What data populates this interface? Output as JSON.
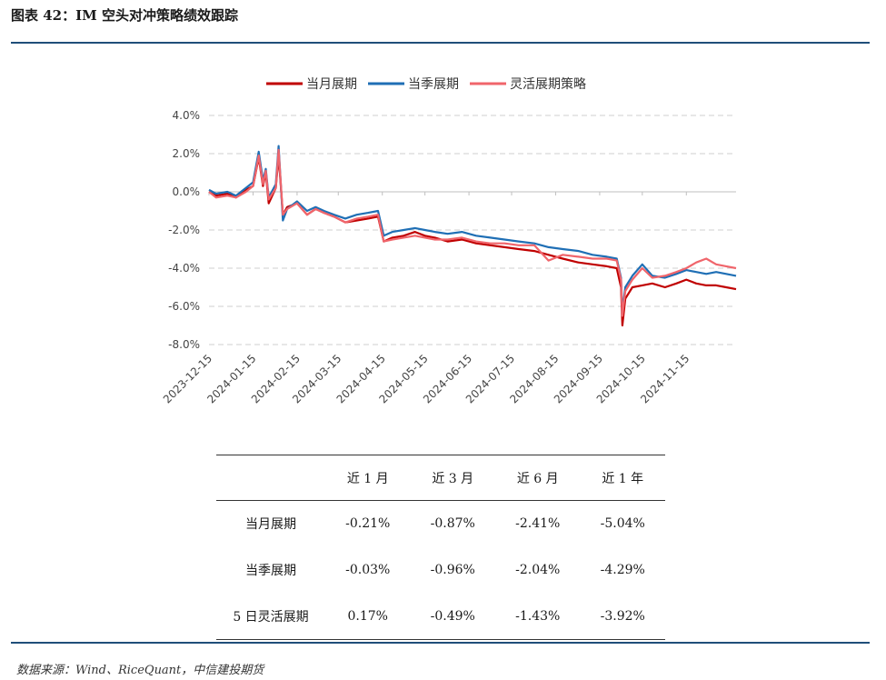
{
  "figure_title": "图表 42：IM 空头对冲策略绩效跟踪",
  "source_note": "数据来源：Wind、RiceQuant，中信建投期货",
  "colors": {
    "accent": "#1f4e79",
    "series_1": "#c00000",
    "series_2": "#1f6fb5",
    "series_3": "#f0656b"
  },
  "chart_data": {
    "type": "line",
    "title": "",
    "xlabel": "",
    "ylabel": "",
    "ylim": [
      -8,
      4
    ],
    "xlim": [
      "2023-12-15",
      "2024-12-20"
    ],
    "yticks": [
      "4.0%",
      "2.0%",
      "0.0%",
      "-2.0%",
      "-4.0%",
      "-6.0%",
      "-8.0%"
    ],
    "ytick_values": [
      4,
      2,
      0,
      -2,
      -4,
      -6,
      -8
    ],
    "xticks": [
      "2023-12-15",
      "2024-01-15",
      "2024-02-15",
      "2024-03-15",
      "2024-04-15",
      "2024-05-15",
      "2024-06-15",
      "2024-07-15",
      "2024-08-15",
      "2024-09-15",
      "2024-10-15",
      "2024-11-15"
    ],
    "grid": true,
    "legend_position": "top",
    "series": [
      {
        "name": "当月展期",
        "color": "#c00000",
        "points": [
          [
            "2023-12-15",
            0.0
          ],
          [
            "2023-12-20",
            -0.2
          ],
          [
            "2023-12-28",
            -0.1
          ],
          [
            "2024-01-03",
            -0.3
          ],
          [
            "2024-01-10",
            0.1
          ],
          [
            "2024-01-15",
            0.3
          ],
          [
            "2024-01-19",
            1.8
          ],
          [
            "2024-01-22",
            0.3
          ],
          [
            "2024-01-24",
            1.0
          ],
          [
            "2024-01-26",
            -0.6
          ],
          [
            "2024-01-31",
            0.2
          ],
          [
            "2024-02-02",
            1.9
          ],
          [
            "2024-02-05",
            -1.2
          ],
          [
            "2024-02-08",
            -0.8
          ],
          [
            "2024-02-15",
            -0.6
          ],
          [
            "2024-02-22",
            -1.2
          ],
          [
            "2024-02-28",
            -0.9
          ],
          [
            "2024-03-05",
            -1.1
          ],
          [
            "2024-03-12",
            -1.3
          ],
          [
            "2024-03-20",
            -1.6
          ],
          [
            "2024-03-28",
            -1.5
          ],
          [
            "2024-04-05",
            -1.4
          ],
          [
            "2024-04-12",
            -1.3
          ],
          [
            "2024-04-16",
            -2.6
          ],
          [
            "2024-04-22",
            -2.4
          ],
          [
            "2024-04-30",
            -2.3
          ],
          [
            "2024-05-08",
            -2.1
          ],
          [
            "2024-05-15",
            -2.3
          ],
          [
            "2024-05-22",
            -2.4
          ],
          [
            "2024-05-31",
            -2.6
          ],
          [
            "2024-06-10",
            -2.5
          ],
          [
            "2024-06-20",
            -2.7
          ],
          [
            "2024-06-30",
            -2.8
          ],
          [
            "2024-07-10",
            -2.9
          ],
          [
            "2024-07-20",
            -3.0
          ],
          [
            "2024-07-31",
            -3.1
          ],
          [
            "2024-08-10",
            -3.3
          ],
          [
            "2024-08-20",
            -3.5
          ],
          [
            "2024-08-31",
            -3.7
          ],
          [
            "2024-09-10",
            -3.8
          ],
          [
            "2024-09-20",
            -3.9
          ],
          [
            "2024-09-27",
            -4.0
          ],
          [
            "2024-09-30",
            -5.0
          ],
          [
            "2024-10-01",
            -7.0
          ],
          [
            "2024-10-03",
            -5.6
          ],
          [
            "2024-10-08",
            -5.0
          ],
          [
            "2024-10-15",
            -4.9
          ],
          [
            "2024-10-22",
            -4.8
          ],
          [
            "2024-10-31",
            -5.0
          ],
          [
            "2024-11-08",
            -4.8
          ],
          [
            "2024-11-15",
            -4.6
          ],
          [
            "2024-11-22",
            -4.8
          ],
          [
            "2024-11-29",
            -4.9
          ],
          [
            "2024-12-06",
            -4.9
          ],
          [
            "2024-12-13",
            -5.0
          ],
          [
            "2024-12-20",
            -5.1
          ]
        ]
      },
      {
        "name": "当季展期",
        "color": "#1f6fb5",
        "points": [
          [
            "2023-12-15",
            0.1
          ],
          [
            "2023-12-20",
            -0.1
          ],
          [
            "2023-12-28",
            0.0
          ],
          [
            "2024-01-03",
            -0.2
          ],
          [
            "2024-01-10",
            0.2
          ],
          [
            "2024-01-15",
            0.5
          ],
          [
            "2024-01-19",
            2.1
          ],
          [
            "2024-01-22",
            0.6
          ],
          [
            "2024-01-24",
            1.2
          ],
          [
            "2024-01-26",
            -0.3
          ],
          [
            "2024-01-31",
            0.4
          ],
          [
            "2024-02-02",
            2.4
          ],
          [
            "2024-02-05",
            -1.5
          ],
          [
            "2024-02-08",
            -0.9
          ],
          [
            "2024-02-15",
            -0.5
          ],
          [
            "2024-02-22",
            -1.0
          ],
          [
            "2024-02-28",
            -0.8
          ],
          [
            "2024-03-05",
            -1.0
          ],
          [
            "2024-03-12",
            -1.2
          ],
          [
            "2024-03-20",
            -1.4
          ],
          [
            "2024-03-28",
            -1.2
          ],
          [
            "2024-04-05",
            -1.1
          ],
          [
            "2024-04-12",
            -1.0
          ],
          [
            "2024-04-16",
            -2.3
          ],
          [
            "2024-04-22",
            -2.1
          ],
          [
            "2024-04-30",
            -2.0
          ],
          [
            "2024-05-08",
            -1.9
          ],
          [
            "2024-05-15",
            -2.0
          ],
          [
            "2024-05-22",
            -2.1
          ],
          [
            "2024-05-31",
            -2.2
          ],
          [
            "2024-06-10",
            -2.1
          ],
          [
            "2024-06-20",
            -2.3
          ],
          [
            "2024-06-30",
            -2.4
          ],
          [
            "2024-07-10",
            -2.5
          ],
          [
            "2024-07-20",
            -2.6
          ],
          [
            "2024-07-31",
            -2.7
          ],
          [
            "2024-08-10",
            -2.9
          ],
          [
            "2024-08-20",
            -3.0
          ],
          [
            "2024-08-31",
            -3.1
          ],
          [
            "2024-09-10",
            -3.3
          ],
          [
            "2024-09-20",
            -3.4
          ],
          [
            "2024-09-27",
            -3.5
          ],
          [
            "2024-09-30",
            -4.5
          ],
          [
            "2024-10-01",
            -6.3
          ],
          [
            "2024-10-03",
            -5.0
          ],
          [
            "2024-10-08",
            -4.4
          ],
          [
            "2024-10-15",
            -3.8
          ],
          [
            "2024-10-22",
            -4.4
          ],
          [
            "2024-10-31",
            -4.5
          ],
          [
            "2024-11-08",
            -4.3
          ],
          [
            "2024-11-15",
            -4.1
          ],
          [
            "2024-11-22",
            -4.2
          ],
          [
            "2024-11-29",
            -4.3
          ],
          [
            "2024-12-06",
            -4.2
          ],
          [
            "2024-12-13",
            -4.3
          ],
          [
            "2024-12-20",
            -4.4
          ]
        ]
      },
      {
        "name": "灵活展期策略",
        "color": "#f0656b",
        "points": [
          [
            "2023-12-15",
            0.0
          ],
          [
            "2023-12-20",
            -0.3
          ],
          [
            "2023-12-28",
            -0.2
          ],
          [
            "2024-01-03",
            -0.3
          ],
          [
            "2024-01-10",
            0.0
          ],
          [
            "2024-01-15",
            0.3
          ],
          [
            "2024-01-19",
            1.9
          ],
          [
            "2024-01-22",
            0.4
          ],
          [
            "2024-01-24",
            1.1
          ],
          [
            "2024-01-26",
            -0.4
          ],
          [
            "2024-01-31",
            0.2
          ],
          [
            "2024-02-02",
            2.2
          ],
          [
            "2024-02-05",
            -1.2
          ],
          [
            "2024-02-08",
            -0.9
          ],
          [
            "2024-02-15",
            -0.6
          ],
          [
            "2024-02-22",
            -1.2
          ],
          [
            "2024-02-28",
            -0.9
          ],
          [
            "2024-03-05",
            -1.1
          ],
          [
            "2024-03-12",
            -1.3
          ],
          [
            "2024-03-20",
            -1.6
          ],
          [
            "2024-03-28",
            -1.4
          ],
          [
            "2024-04-05",
            -1.3
          ],
          [
            "2024-04-12",
            -1.2
          ],
          [
            "2024-04-16",
            -2.6
          ],
          [
            "2024-04-22",
            -2.5
          ],
          [
            "2024-04-30",
            -2.4
          ],
          [
            "2024-05-08",
            -2.3
          ],
          [
            "2024-05-15",
            -2.4
          ],
          [
            "2024-05-22",
            -2.5
          ],
          [
            "2024-05-31",
            -2.5
          ],
          [
            "2024-06-10",
            -2.4
          ],
          [
            "2024-06-20",
            -2.6
          ],
          [
            "2024-06-30",
            -2.7
          ],
          [
            "2024-07-10",
            -2.7
          ],
          [
            "2024-07-20",
            -2.8
          ],
          [
            "2024-07-31",
            -2.8
          ],
          [
            "2024-08-10",
            -3.6
          ],
          [
            "2024-08-20",
            -3.3
          ],
          [
            "2024-08-31",
            -3.4
          ],
          [
            "2024-09-10",
            -3.5
          ],
          [
            "2024-09-20",
            -3.5
          ],
          [
            "2024-09-27",
            -3.6
          ],
          [
            "2024-09-30",
            -4.6
          ],
          [
            "2024-10-01",
            -6.5
          ],
          [
            "2024-10-03",
            -5.2
          ],
          [
            "2024-10-08",
            -4.6
          ],
          [
            "2024-10-15",
            -4.0
          ],
          [
            "2024-10-22",
            -4.5
          ],
          [
            "2024-10-31",
            -4.4
          ],
          [
            "2024-11-08",
            -4.2
          ],
          [
            "2024-11-15",
            -4.0
          ],
          [
            "2024-11-22",
            -3.7
          ],
          [
            "2024-11-29",
            -3.5
          ],
          [
            "2024-12-06",
            -3.8
          ],
          [
            "2024-12-13",
            -3.9
          ],
          [
            "2024-12-20",
            -4.0
          ]
        ]
      }
    ]
  },
  "performance_table": {
    "corner": "",
    "headers": [
      "近 1 月",
      "近 3 月",
      "近 6 月",
      "近 1 年"
    ],
    "rows": [
      {
        "label": "当月展期",
        "values": [
          "-0.21%",
          "-0.87%",
          "-2.41%",
          "-5.04%"
        ]
      },
      {
        "label": "当季展期",
        "values": [
          "-0.03%",
          "-0.96%",
          "-2.04%",
          "-4.29%"
        ]
      },
      {
        "label": "5 日灵活展期",
        "values": [
          "0.17%",
          "-0.49%",
          "-1.43%",
          "-3.92%"
        ]
      }
    ]
  }
}
